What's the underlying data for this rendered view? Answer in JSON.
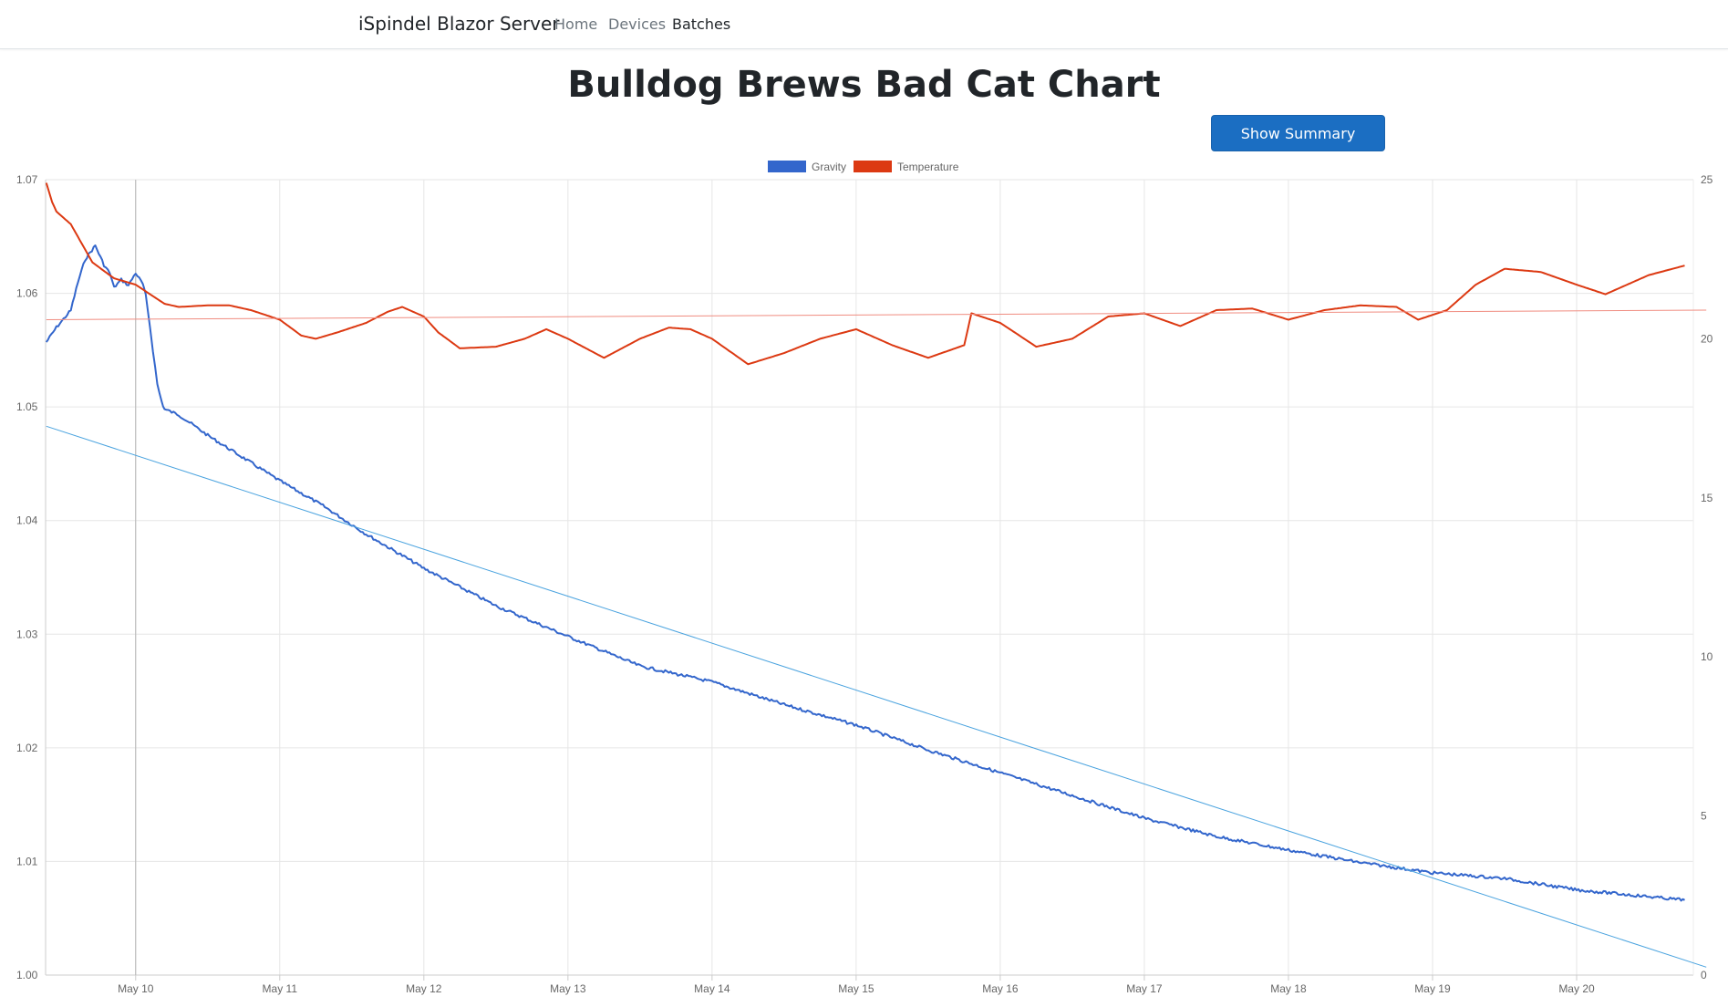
{
  "navbar": {
    "brand": "iSpindel Blazor Server",
    "links": [
      {
        "label": "Home",
        "active": false
      },
      {
        "label": "Devices",
        "active": false
      },
      {
        "label": "Batches",
        "active": true
      }
    ]
  },
  "page": {
    "title": "Bulldog Brews Bad Cat Chart",
    "show_summary_label": "Show Summary"
  },
  "chart_data": {
    "type": "line",
    "legend": {
      "position": "top",
      "items": [
        {
          "label": "Gravity",
          "color": "#3366cc"
        },
        {
          "label": "Temperature",
          "color": "#dc3912"
        }
      ]
    },
    "x_axis": {
      "type": "time",
      "range": [
        "May 9 15:00",
        "May 20 18:00"
      ],
      "tick_labels": [
        "May 10",
        "May 11",
        "May 12",
        "May 13",
        "May 14",
        "May 15",
        "May 16",
        "May 17",
        "May 18",
        "May 19",
        "May 20"
      ],
      "grid": true
    },
    "y_axis_left": {
      "ticks": [
        "1.00",
        "1.01",
        "1.02",
        "1.03",
        "1.04",
        "1.05",
        "1.06",
        "1.07"
      ],
      "range": [
        1.0,
        1.07
      ],
      "grid": true
    },
    "y_axis_right": {
      "ticks": [
        "0",
        "5",
        "10",
        "15",
        "20",
        "25"
      ],
      "range": [
        0,
        25
      ]
    },
    "series": [
      {
        "name": "Gravity",
        "axis": "left",
        "color": "#3366cc",
        "x": [
          9.38,
          9.45,
          9.55,
          9.6,
          9.65,
          9.72,
          9.78,
          9.82,
          9.85,
          9.9,
          9.95,
          10.0,
          10.05,
          10.07,
          10.1,
          10.12,
          10.15,
          10.18,
          10.2,
          10.3,
          10.5,
          10.75,
          11.0,
          11.3,
          11.6,
          12.0,
          12.5,
          13.0,
          13.5,
          14.0,
          14.5,
          15.0,
          15.5,
          16.0,
          16.5,
          17.0,
          17.5,
          18.0,
          18.5,
          19.0,
          19.5,
          20.0,
          20.5,
          20.75
        ],
        "y": [
          1.0557,
          1.057,
          1.0585,
          1.061,
          1.063,
          1.0642,
          1.0625,
          1.0618,
          1.0605,
          1.0612,
          1.0607,
          1.0618,
          1.0608,
          1.0598,
          1.057,
          1.055,
          1.052,
          1.0505,
          1.0498,
          1.0493,
          1.0475,
          1.0455,
          1.0435,
          1.0413,
          1.0388,
          1.0358,
          1.0325,
          1.0298,
          1.0272,
          1.0258,
          1.0238,
          1.022,
          1.0198,
          1.0178,
          1.0158,
          1.0138,
          1.0122,
          1.011,
          1.0099,
          1.009,
          1.0085,
          1.0075,
          1.0069,
          1.0066
        ]
      },
      {
        "name": "Temperature",
        "axis": "right",
        "color": "#dc3912",
        "x": [
          9.38,
          9.42,
          9.45,
          9.55,
          9.6,
          9.7,
          9.85,
          10.0,
          10.1,
          10.2,
          10.3,
          10.5,
          10.65,
          10.8,
          11.0,
          11.15,
          11.25,
          11.4,
          11.6,
          11.75,
          11.85,
          12.0,
          12.1,
          12.25,
          12.5,
          12.7,
          12.85,
          13.0,
          13.25,
          13.5,
          13.7,
          13.85,
          14.0,
          14.25,
          14.5,
          14.75,
          15.0,
          15.25,
          15.5,
          15.75,
          15.8,
          16.0,
          16.25,
          16.5,
          16.75,
          17.0,
          17.25,
          17.5,
          17.75,
          18.0,
          18.25,
          18.5,
          18.75,
          18.9,
          19.1,
          19.3,
          19.5,
          19.75,
          20.0,
          20.2,
          20.35,
          20.5,
          20.75
        ],
        "y": [
          24.9,
          24.3,
          24.0,
          23.6,
          23.2,
          22.4,
          21.9,
          21.7,
          21.4,
          21.1,
          21.0,
          21.05,
          21.05,
          20.9,
          20.6,
          20.1,
          20.0,
          20.2,
          20.5,
          20.85,
          21.0,
          20.7,
          20.2,
          19.7,
          19.75,
          20.0,
          20.3,
          20.0,
          19.4,
          20.0,
          20.35,
          20.3,
          20.0,
          19.2,
          19.55,
          20.0,
          20.3,
          19.8,
          19.4,
          19.8,
          20.8,
          20.5,
          19.75,
          20.0,
          20.7,
          20.8,
          20.4,
          20.9,
          20.95,
          20.6,
          20.9,
          21.05,
          21.0,
          20.6,
          20.9,
          21.7,
          22.2,
          22.1,
          21.7,
          21.4,
          21.7,
          22.0,
          22.3
        ]
      },
      {
        "name": "",
        "axis": "left",
        "color": "#4aa3df",
        "style": "trendline",
        "x": [
          9.38,
          20.9
        ],
        "y": [
          1.0483,
          1.0007
        ]
      },
      {
        "name": "",
        "axis": "right",
        "color": "#f08c80",
        "style": "trendline",
        "x": [
          9.38,
          20.9
        ],
        "y": [
          20.6,
          20.9
        ]
      }
    ],
    "crosshair_x": 10.0
  }
}
